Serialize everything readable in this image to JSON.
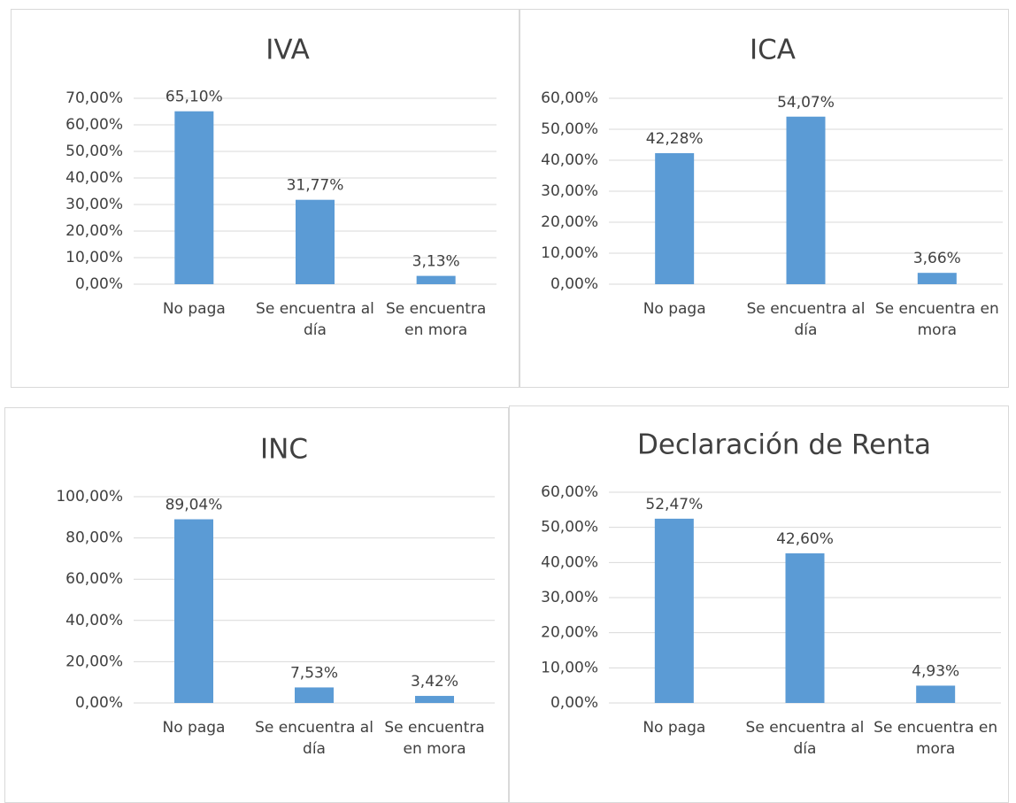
{
  "chart_data": [
    {
      "type": "bar",
      "title": "IVA",
      "categories": [
        "No paga",
        "Se encuentra al día",
        "Se encuentra en mora"
      ],
      "values": [
        65.1,
        31.77,
        3.13
      ],
      "value_labels": [
        "65,10%",
        "31,77%",
        "3,13%"
      ],
      "color": "#5b9bd5",
      "ylim": [
        0,
        70
      ],
      "yticks": [
        {
          "value": 0,
          "label": "0,00%"
        },
        {
          "value": 10,
          "label": "10,00%"
        },
        {
          "value": 20,
          "label": "20,00%"
        },
        {
          "value": 30,
          "label": "30,00%"
        },
        {
          "value": 40,
          "label": "40,00%"
        },
        {
          "value": 50,
          "label": "50,00%"
        },
        {
          "value": 60,
          "label": "60,00%"
        },
        {
          "value": 70,
          "label": "70,00%"
        }
      ],
      "grid": true
    },
    {
      "type": "bar",
      "title": "ICA",
      "categories": [
        "No paga",
        "Se encuentra al día",
        "Se encuentra en mora"
      ],
      "values": [
        42.28,
        54.07,
        3.66
      ],
      "value_labels": [
        "42,28%",
        "54,07%",
        "3,66%"
      ],
      "color": "#5b9bd5",
      "ylim": [
        0,
        60
      ],
      "yticks": [
        {
          "value": 0,
          "label": "0,00%"
        },
        {
          "value": 10,
          "label": "10,00%"
        },
        {
          "value": 20,
          "label": "20,00%"
        },
        {
          "value": 30,
          "label": "30,00%"
        },
        {
          "value": 40,
          "label": "40,00%"
        },
        {
          "value": 50,
          "label": "50,00%"
        },
        {
          "value": 60,
          "label": "60,00%"
        }
      ],
      "grid": true
    },
    {
      "type": "bar",
      "title": "INC",
      "categories": [
        "No paga",
        "Se encuentra al día",
        "Se encuentra en mora"
      ],
      "values": [
        89.04,
        7.53,
        3.42
      ],
      "value_labels": [
        "89,04%",
        "7,53%",
        "3,42%"
      ],
      "color": "#5b9bd5",
      "ylim": [
        0,
        100
      ],
      "yticks": [
        {
          "value": 0,
          "label": "0,00%"
        },
        {
          "value": 20,
          "label": "20,00%"
        },
        {
          "value": 40,
          "label": "40,00%"
        },
        {
          "value": 60,
          "label": "60,00%"
        },
        {
          "value": 80,
          "label": "80,00%"
        },
        {
          "value": 100,
          "label": "100,00%"
        }
      ],
      "grid": true
    },
    {
      "type": "bar",
      "title": "Declaración de Renta",
      "categories": [
        "No paga",
        "Se encuentra al día",
        "Se encuentra en mora"
      ],
      "values": [
        52.47,
        42.6,
        4.93
      ],
      "value_labels": [
        "52,47%",
        "42,60%",
        "4,93%"
      ],
      "color": "#5b9bd5",
      "ylim": [
        0,
        60
      ],
      "yticks": [
        {
          "value": 0,
          "label": "0,00%"
        },
        {
          "value": 10,
          "label": "10,00%"
        },
        {
          "value": 20,
          "label": "20,00%"
        },
        {
          "value": 30,
          "label": "30,00%"
        },
        {
          "value": 40,
          "label": "40,00%"
        },
        {
          "value": 50,
          "label": "50,00%"
        },
        {
          "value": 60,
          "label": "60,00%"
        }
      ],
      "grid": true
    }
  ]
}
